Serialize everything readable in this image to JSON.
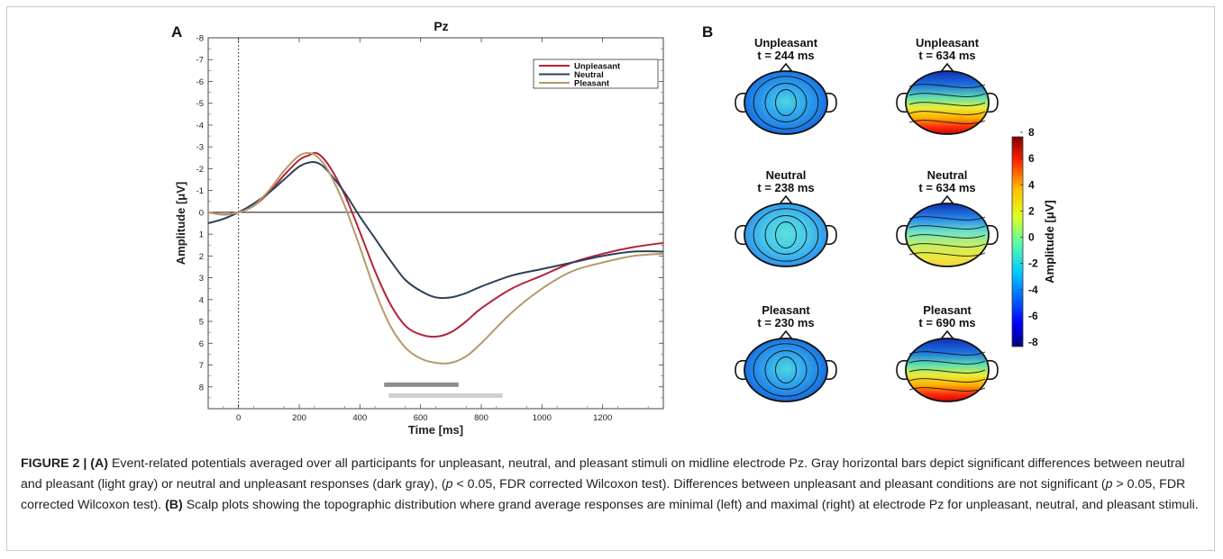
{
  "panels": {
    "a": "A",
    "b": "B"
  },
  "chart_data": [
    {
      "type": "line",
      "title": "Pz",
      "xlabel": "Time [ms]",
      "ylabel": "Amplitude [μV]",
      "xlim": [
        -100,
        1400
      ],
      "ylim": [
        -8,
        9
      ],
      "y_inverted": true,
      "x_ticks": [
        0,
        200,
        400,
        600,
        800,
        1000,
        1200
      ],
      "y_ticks": [
        -8,
        -7,
        -6,
        -5,
        -4,
        -3,
        -2,
        -1,
        0,
        1,
        2,
        3,
        4,
        5,
        6,
        7,
        8
      ],
      "legend_position": "top-right",
      "series": [
        {
          "name": "Unpleasant",
          "color": "#b5213a",
          "x": [
            -100,
            -50,
            0,
            50,
            100,
            150,
            200,
            230,
            260,
            300,
            350,
            400,
            450,
            500,
            550,
            600,
            650,
            700,
            750,
            800,
            900,
            1000,
            1100,
            1200,
            1300,
            1400
          ],
          "y": [
            0.0,
            0.1,
            0.0,
            -0.3,
            -0.9,
            -1.7,
            -2.4,
            -2.6,
            -2.7,
            -2.1,
            -0.8,
            0.9,
            2.7,
            4.2,
            5.2,
            5.6,
            5.7,
            5.5,
            5.0,
            4.4,
            3.5,
            2.9,
            2.3,
            1.9,
            1.6,
            1.4
          ]
        },
        {
          "name": "Neutral",
          "color": "#2f3f58",
          "x": [
            -100,
            -50,
            0,
            50,
            100,
            150,
            200,
            240,
            270,
            300,
            350,
            400,
            450,
            500,
            550,
            600,
            650,
            700,
            750,
            800,
            900,
            1000,
            1100,
            1200,
            1300,
            1400
          ],
          "y": [
            0.5,
            0.3,
            0.0,
            -0.4,
            -0.9,
            -1.5,
            -2.1,
            -2.3,
            -2.2,
            -1.8,
            -0.9,
            0.2,
            1.2,
            2.2,
            3.1,
            3.6,
            3.9,
            3.9,
            3.7,
            3.4,
            2.9,
            2.6,
            2.3,
            2.0,
            1.8,
            1.8
          ]
        },
        {
          "name": "Pleasant",
          "color": "#b59a6a",
          "x": [
            -100,
            -50,
            0,
            50,
            100,
            150,
            200,
            240,
            270,
            300,
            350,
            400,
            450,
            500,
            550,
            600,
            650,
            700,
            750,
            800,
            900,
            1000,
            1100,
            1200,
            1300,
            1400
          ],
          "y": [
            0.0,
            0.1,
            0.0,
            -0.3,
            -1.0,
            -1.9,
            -2.6,
            -2.7,
            -2.4,
            -1.8,
            -0.3,
            1.6,
            3.6,
            5.2,
            6.2,
            6.7,
            6.9,
            6.9,
            6.6,
            6.0,
            4.6,
            3.5,
            2.7,
            2.3,
            2.0,
            1.9
          ]
        }
      ],
      "significance_bars": [
        {
          "x_start": 480,
          "x_end": 725,
          "y": 7.9,
          "color": "#8c8c8c"
        },
        {
          "x_start": 495,
          "x_end": 870,
          "y": 8.4,
          "color": "#cfcfcf"
        }
      ]
    },
    {
      "type": "heatmap",
      "colorbar_label": "Amplitude [μV]",
      "colorbar_range": [
        -8,
        8
      ],
      "colorbar_ticks": [
        8,
        6,
        4,
        2,
        0,
        -2,
        -4,
        -6,
        -8
      ],
      "maps": [
        {
          "condition": "Unpleasant",
          "time_label": "t = 244 ms",
          "pattern": "min-blue"
        },
        {
          "condition": "Unpleasant",
          "time_label": "t = 634 ms",
          "pattern": "max-red"
        },
        {
          "condition": "Neutral",
          "time_label": "t = 238 ms",
          "pattern": "min-cyan"
        },
        {
          "condition": "Neutral",
          "time_label": "t = 634 ms",
          "pattern": "max-yellow"
        },
        {
          "condition": "Pleasant",
          "time_label": "t = 230 ms",
          "pattern": "min-blue"
        },
        {
          "condition": "Pleasant",
          "time_label": "t = 690 ms",
          "pattern": "max-red"
        }
      ]
    }
  ],
  "caption": {
    "fig_label": "FIGURE 2 | ",
    "part_a_label": "(A)",
    "text_1": " Event-related potentials averaged over all participants for unpleasant, neutral, and pleasant stimuli on midline electrode Pz. Gray horizontal bars depict significant differences between neutral and pleasant (light gray) or neutral and unpleasant responses (dark gray), (",
    "p_symbol": "p",
    "text_2": " < 0.05, FDR corrected Wilcoxon test). Differences between unpleasant and pleasant conditions are not significant (",
    "text_3": " > 0.05, FDR corrected Wilcoxon test). ",
    "part_b_label": "(B)",
    "text_4": " Scalp plots showing the topographic distribution where grand average responses are minimal (left) and maximal (right) at electrode Pz for unpleasant, neutral, and pleasant stimuli."
  }
}
